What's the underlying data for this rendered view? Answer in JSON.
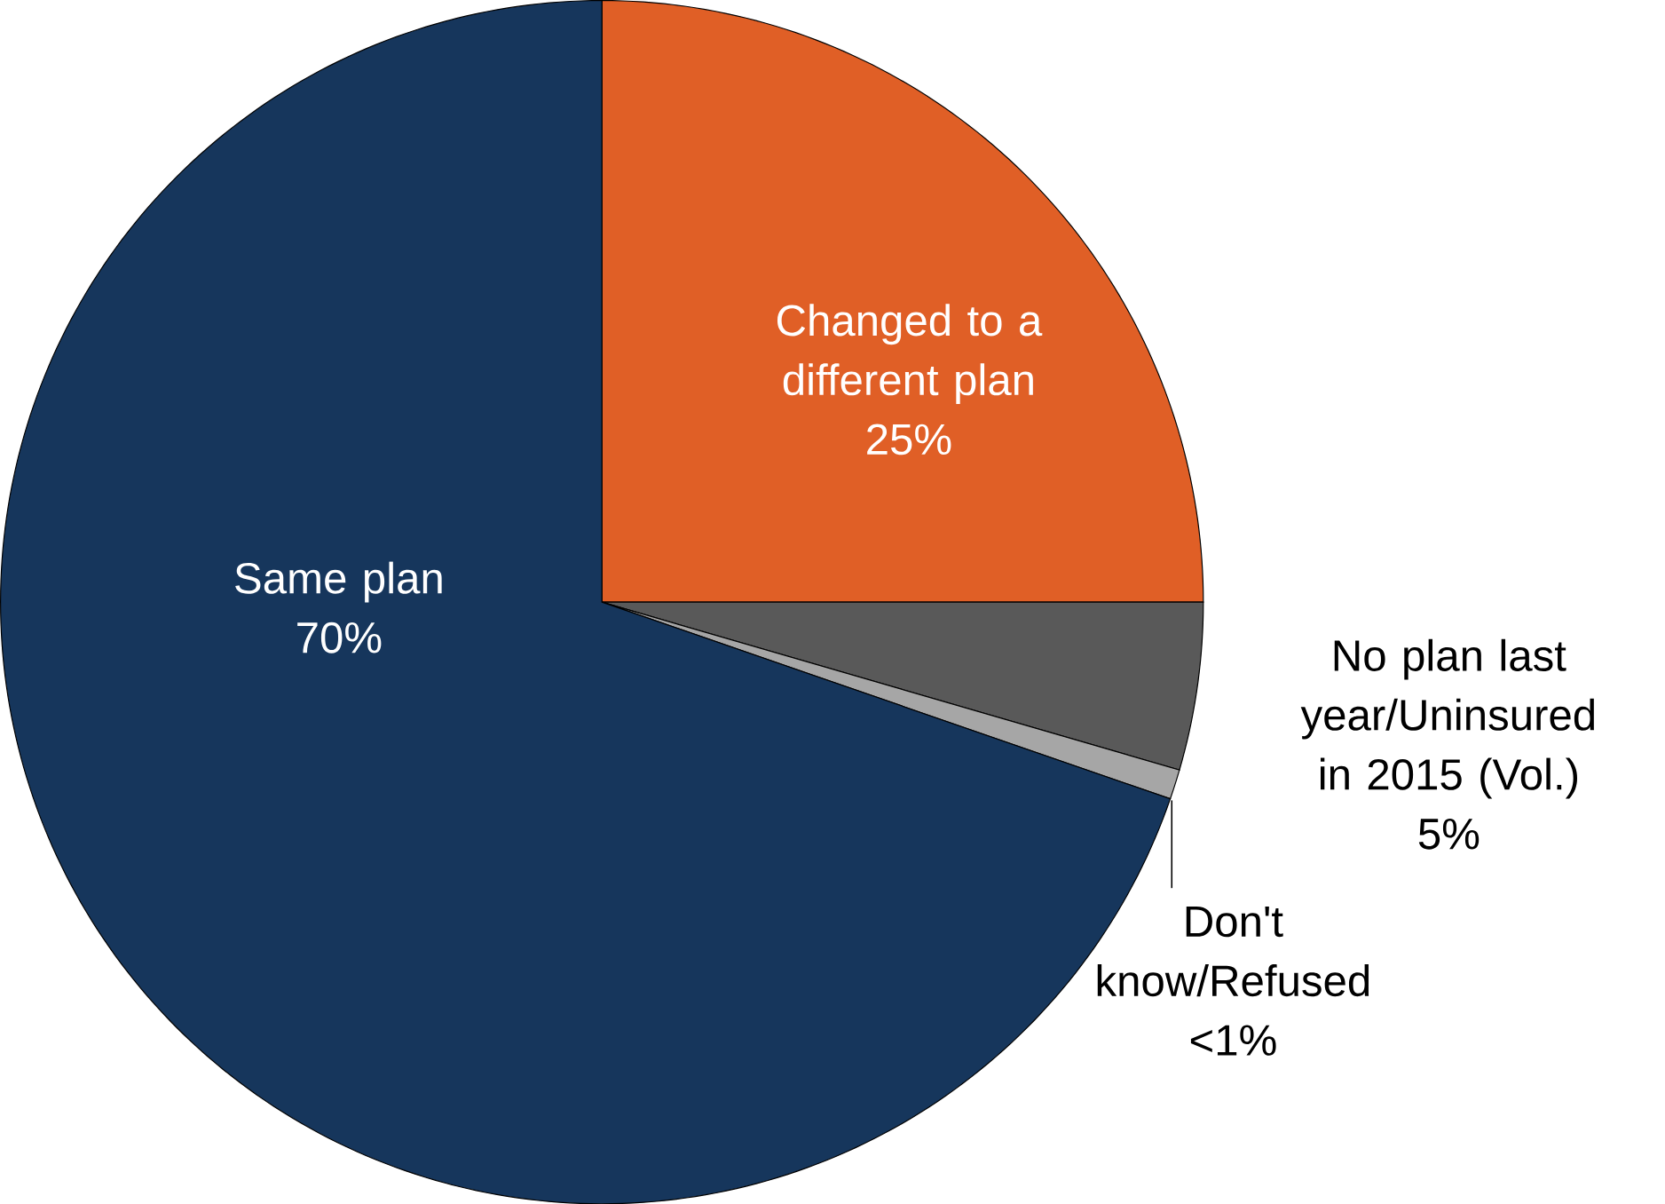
{
  "chart_data": {
    "type": "pie",
    "categories": [
      "Changed to a different plan",
      "No plan last year/Uninsured in 2015 (Vol.)",
      "Don't know/Refused",
      "Same plan"
    ],
    "values": [
      25,
      4.5,
      0.8,
      69.7
    ],
    "value_labels": [
      "25%",
      "5%",
      "<1%",
      "70%"
    ],
    "colors": [
      "#e05f26",
      "#595959",
      "#a6a6a6",
      "#16365c"
    ]
  }
}
